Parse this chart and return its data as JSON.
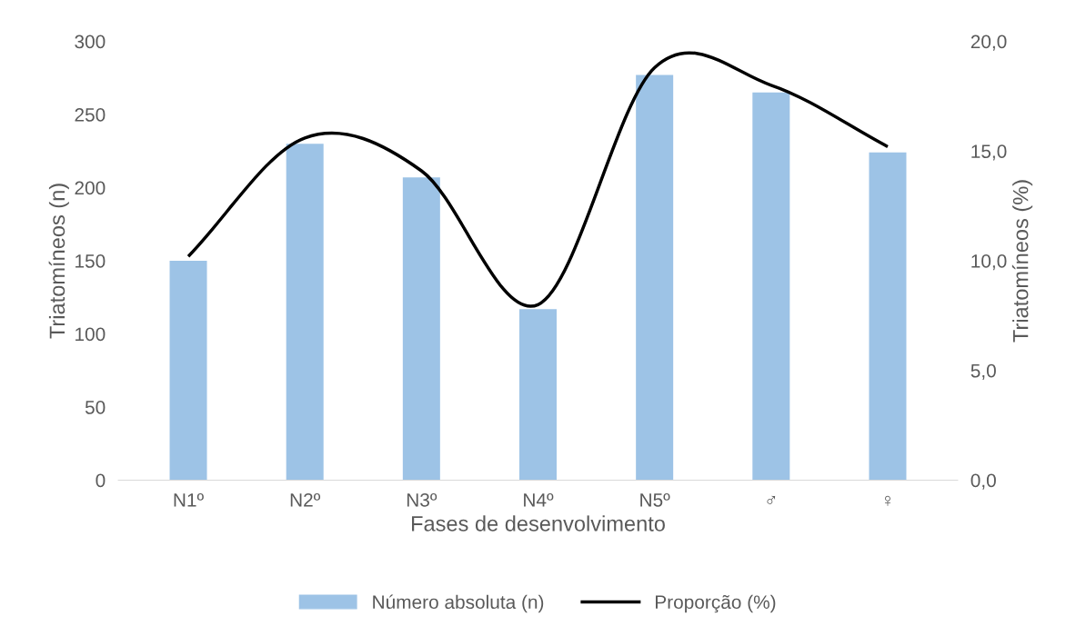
{
  "chart_data": {
    "type": "bar",
    "xlabel": "Fases de desenvolvimento",
    "ylabel": "Triatomíneos (n)",
    "y2label": "Triatomíneos (%)",
    "categories": [
      "N1º",
      "N2º",
      "N3º",
      "N4º",
      "N5º",
      "♂",
      "♀"
    ],
    "series": [
      {
        "name": "Número absoluta (n)",
        "color": "#9dc3e6",
        "values": [
          150,
          230,
          207,
          117,
          277,
          265,
          224
        ]
      },
      {
        "name": "Proporção (%)",
        "type": "line",
        "axis": "y2",
        "color": "#000000",
        "values": [
          10.2,
          15.6,
          14.1,
          8.0,
          18.8,
          18.0,
          15.2
        ]
      }
    ],
    "ylim": [
      0,
      300
    ],
    "yticks": [
      0,
      50,
      100,
      150,
      200,
      250,
      300
    ],
    "y2lim": [
      0,
      20
    ],
    "y2ticks": [
      {
        "value": 0,
        "label": "0,0"
      },
      {
        "value": 5,
        "label": "5,0"
      },
      {
        "value": 10,
        "label": "10,0"
      },
      {
        "value": 15,
        "label": "15,0"
      },
      {
        "value": 20,
        "label": "20,0"
      }
    ],
    "grid": false,
    "legend": "bottom",
    "marker": "none",
    "line_style": "solid"
  }
}
